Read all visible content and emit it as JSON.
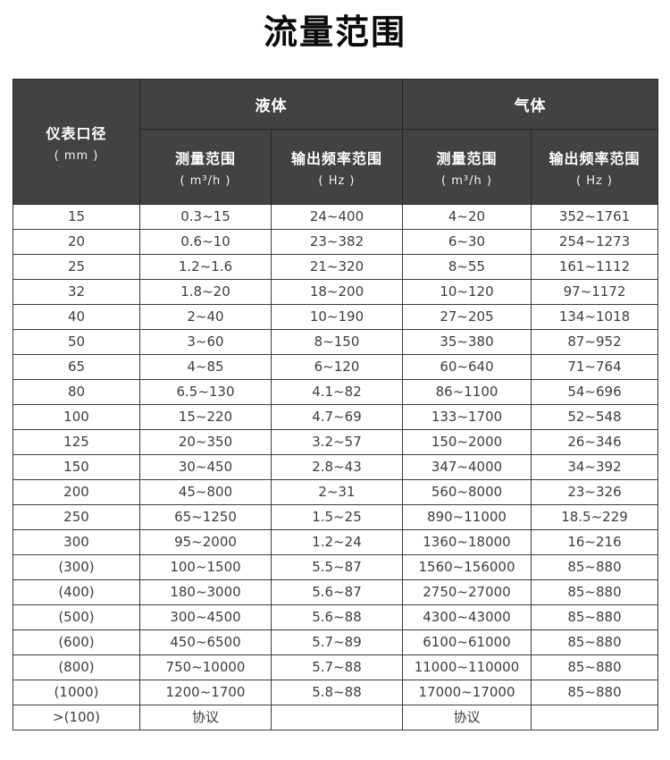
{
  "page_title": "流量范围",
  "table": {
    "header": {
      "diameter_label": "仪表口径",
      "diameter_unit": "( mm )",
      "liquid_group": "液体",
      "gas_group": "气体",
      "liquid_measure_label": "测量范围",
      "liquid_measure_unit": "( m³/h )",
      "liquid_freq_label": "输出频率范围",
      "liquid_freq_unit": "( Hz )",
      "gas_measure_label": "测量范围",
      "gas_measure_unit": "( m³/h )",
      "gas_freq_label": "输出频率范围",
      "gas_freq_unit": "( Hz )"
    },
    "rows": [
      [
        "15",
        "0.3~15",
        "24~400",
        "4~20",
        "352~1761"
      ],
      [
        "20",
        "0.6~10",
        "23~382",
        "6~30",
        "254~1273"
      ],
      [
        "25",
        "1.2~1.6",
        "21~320",
        "8~55",
        "161~1112"
      ],
      [
        "32",
        "1.8~20",
        "18~200",
        "10~120",
        "97~1172"
      ],
      [
        "40",
        "2~40",
        "10~190",
        "27~205",
        "134~1018"
      ],
      [
        "50",
        "3~60",
        "8~150",
        "35~380",
        "87~952"
      ],
      [
        "65",
        "4~85",
        "6~120",
        "60~640",
        "71~764"
      ],
      [
        "80",
        "6.5~130",
        "4.1~82",
        "86~1100",
        "54~696"
      ],
      [
        "100",
        "15~220",
        "4.7~69",
        "133~1700",
        "52~548"
      ],
      [
        "125",
        "20~350",
        "3.2~57",
        "150~2000",
        "26~346"
      ],
      [
        "150",
        "30~450",
        "2.8~43",
        "347~4000",
        "34~392"
      ],
      [
        "200",
        "45~800",
        "2~31",
        "560~8000",
        "23~326"
      ],
      [
        "250",
        "65~1250",
        "1.5~25",
        "890~11000",
        "18.5~229"
      ],
      [
        "300",
        "95~2000",
        "1.2~24",
        "1360~18000",
        "16~216"
      ],
      [
        "(300)",
        "100~1500",
        "5.5~87",
        "1560~156000",
        "85~880"
      ],
      [
        "(400)",
        "180~3000",
        "5.6~87",
        "2750~27000",
        "85~880"
      ],
      [
        "(500)",
        "300~4500",
        "5.6~88",
        "4300~43000",
        "85~880"
      ],
      [
        "(600)",
        "450~6500",
        "5.7~89",
        "6100~61000",
        "85~880"
      ],
      [
        "(800)",
        "750~10000",
        "5.7~88",
        "11000~110000",
        "85~880"
      ],
      [
        "(1000)",
        "1200~1700",
        "5.8~88",
        "17000~17000",
        "85~880"
      ],
      [
        ">(100)",
        "协议",
        "",
        "协议",
        ""
      ]
    ]
  },
  "colors": {
    "header_bg": "#424242",
    "header_text": "#ffffff",
    "header_border": "#262626",
    "body_text": "#3d3d3d",
    "body_border": "#3a3a3a",
    "title_text": "#0a0a0a"
  }
}
